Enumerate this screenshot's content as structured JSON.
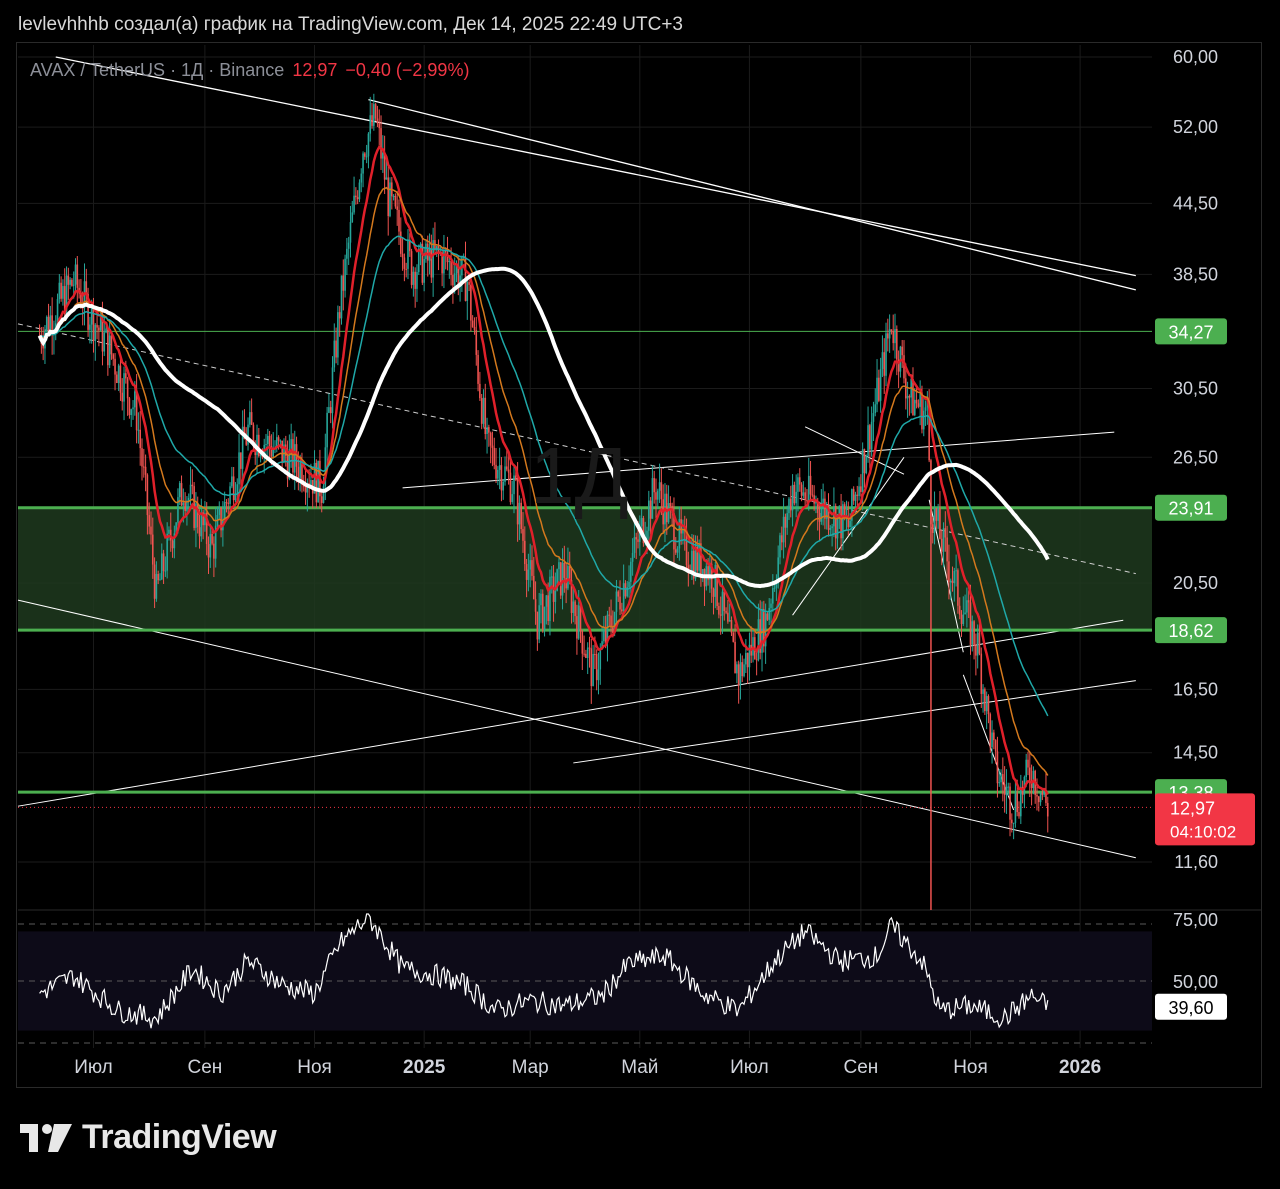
{
  "caption": "levlevhhhb создал(а) график на TradingView.com, Дек 14, 2025 22:49 UTC+3",
  "symbol": {
    "pair": "AVAX / TetherUS · 1Д · Binance",
    "price": "12,97",
    "change": "−0,40 (−2,99%)"
  },
  "watermark": "1Д",
  "brand": {
    "name": "TradingView",
    "icon": "tradingview-logo-icon"
  },
  "colors": {
    "up": "#26a69a",
    "down": "#ef5350",
    "ema_fast": "#e0202a",
    "ema_mid": "#d4791d",
    "ema_slow": "#1fa8a8",
    "ma_long": "#ffffff",
    "level": "#4caf50",
    "zone": "#1e3a1e",
    "price_tag": "#f23645"
  },
  "chart_data": {
    "type": "candlestick",
    "scale": "log",
    "price_axis_ticks": [
      "60,00",
      "52,00",
      "44,50",
      "38,50",
      "30,50",
      "26,50",
      "20,50",
      "16,50",
      "14,50",
      "11,60"
    ],
    "price_axis_tick_values": [
      60,
      52,
      44.5,
      38.5,
      30.5,
      26.5,
      20.5,
      16.5,
      14.5,
      11.6
    ],
    "time_axis_ticks": [
      "Июл",
      "Сен",
      "Ноя",
      "2025",
      "Мар",
      "Май",
      "Июл",
      "Сен",
      "Ноя",
      "2026"
    ],
    "time_axis_tick_dates": [
      "2024-07",
      "2024-09",
      "2024-11",
      "2025-01",
      "2025-03",
      "2025-05",
      "2025-07",
      "2025-09",
      "2025-11",
      "2026-01"
    ],
    "horizontal_levels": [
      {
        "label": "34,27",
        "value": 34.27
      },
      {
        "label": "23,91",
        "value": 23.91
      },
      {
        "label": "18,62",
        "value": 18.62
      },
      {
        "label": "13,38",
        "value": 13.38
      }
    ],
    "support_zone": [
      18.62,
      23.91
    ],
    "last_price": {
      "label": "12,97",
      "value": 12.97,
      "countdown": "04:10:02"
    },
    "price_path": [
      [
        "2024-06-01",
        34
      ],
      [
        "2024-06-20",
        38
      ],
      [
        "2024-07-10",
        33
      ],
      [
        "2024-07-25",
        29
      ],
      [
        "2024-08-05",
        20
      ],
      [
        "2024-08-20",
        25
      ],
      [
        "2024-09-05",
        22
      ],
      [
        "2024-09-25",
        28
      ],
      [
        "2024-10-10",
        27
      ],
      [
        "2024-10-25",
        26
      ],
      [
        "2024-11-05",
        25
      ],
      [
        "2024-11-15",
        36
      ],
      [
        "2024-11-28",
        50
      ],
      [
        "2024-12-05",
        53
      ],
      [
        "2024-12-12",
        45
      ],
      [
        "2024-12-25",
        39
      ],
      [
        "2025-01-10",
        40
      ],
      [
        "2025-01-25",
        38
      ],
      [
        "2025-02-05",
        27
      ],
      [
        "2025-02-20",
        25
      ],
      [
        "2025-03-05",
        19
      ],
      [
        "2025-03-20",
        21
      ],
      [
        "2025-04-05",
        17
      ],
      [
        "2025-04-20",
        20
      ],
      [
        "2025-05-10",
        25
      ],
      [
        "2025-05-25",
        22
      ],
      [
        "2025-06-10",
        21
      ],
      [
        "2025-06-25",
        17
      ],
      [
        "2025-07-10",
        19
      ],
      [
        "2025-07-25",
        25
      ],
      [
        "2025-08-10",
        24
      ],
      [
        "2025-08-25",
        23
      ],
      [
        "2025-09-10",
        30
      ],
      [
        "2025-09-18",
        35
      ],
      [
        "2025-09-28",
        30
      ],
      [
        "2025-10-08",
        29
      ],
      [
        "2025-10-10",
        24
      ],
      [
        "2025-10-25",
        20
      ],
      [
        "2025-11-05",
        18
      ],
      [
        "2025-11-15",
        14
      ],
      [
        "2025-11-25",
        13
      ],
      [
        "2025-12-05",
        14
      ],
      [
        "2025-12-14",
        12.97
      ]
    ],
    "rsi": {
      "ticks": [
        "75,00",
        "50,00"
      ],
      "tick_values": [
        75,
        50
      ],
      "current_label": "39,60",
      "current": 39.6,
      "path": [
        [
          "2024-06-01",
          45
        ],
        [
          "2024-06-20",
          52
        ],
        [
          "2024-07-15",
          38
        ],
        [
          "2024-08-05",
          35
        ],
        [
          "2024-08-25",
          55
        ],
        [
          "2024-09-10",
          45
        ],
        [
          "2024-09-25",
          58
        ],
        [
          "2024-10-15",
          48
        ],
        [
          "2024-11-01",
          45
        ],
        [
          "2024-11-15",
          65
        ],
        [
          "2024-12-01",
          76
        ],
        [
          "2024-12-20",
          55
        ],
        [
          "2025-01-10",
          52
        ],
        [
          "2025-01-25",
          48
        ],
        [
          "2025-02-10",
          38
        ],
        [
          "2025-03-01",
          42
        ],
        [
          "2025-03-20",
          40
        ],
        [
          "2025-04-10",
          44
        ],
        [
          "2025-04-25",
          57
        ],
        [
          "2025-05-15",
          60
        ],
        [
          "2025-06-05",
          45
        ],
        [
          "2025-06-25",
          38
        ],
        [
          "2025-07-15",
          58
        ],
        [
          "2025-08-01",
          70
        ],
        [
          "2025-08-20",
          58
        ],
        [
          "2025-09-10",
          60
        ],
        [
          "2025-09-18",
          72
        ],
        [
          "2025-10-05",
          58
        ],
        [
          "2025-10-15",
          38
        ],
        [
          "2025-11-01",
          40
        ],
        [
          "2025-11-20",
          35
        ],
        [
          "2025-12-05",
          44
        ],
        [
          "2025-12-14",
          39.6
        ]
      ]
    },
    "moving_averages": [
      "ema_fast",
      "ema_mid",
      "ema_slow",
      "ma_long"
    ],
    "grid": true
  }
}
